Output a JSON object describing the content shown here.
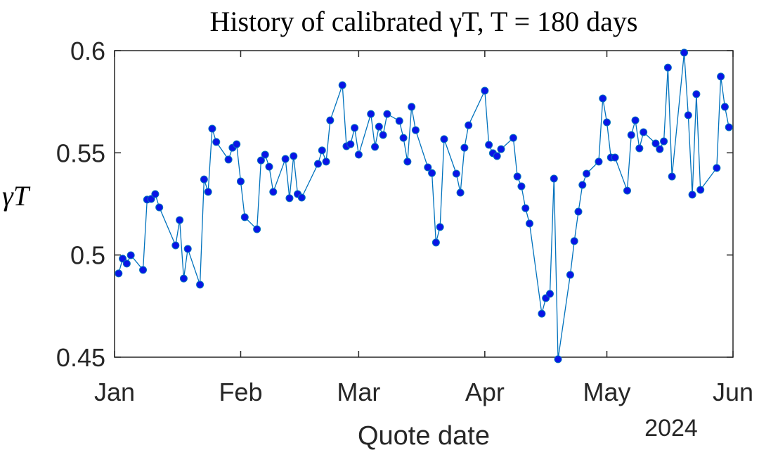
{
  "chart_data": {
    "type": "line",
    "title": "History of calibrated γT, T = 180 days",
    "xlabel": "Quote date",
    "xlabel_secondary": "2024",
    "ylabel": "γT",
    "xlim": [
      0,
      152
    ],
    "xticks": [
      {
        "value": 0,
        "label": "Jan"
      },
      {
        "value": 31,
        "label": "Feb"
      },
      {
        "value": 60,
        "label": "Mar"
      },
      {
        "value": 91,
        "label": "Apr"
      },
      {
        "value": 121,
        "label": "May"
      },
      {
        "value": 152,
        "label": "Jun"
      }
    ],
    "ylim": [
      0.45,
      0.6
    ],
    "yticks": [
      0.45,
      0.5,
      0.55,
      0.6
    ],
    "grid": false,
    "x": [
      1,
      2,
      3,
      4,
      7,
      8,
      9,
      10,
      11,
      15,
      16,
      17,
      18,
      21,
      22,
      23,
      24,
      25,
      28,
      29,
      30,
      31,
      32,
      35,
      36,
      37,
      38,
      39,
      42,
      43,
      44,
      45,
      46,
      50,
      51,
      52,
      53,
      56,
      57,
      58,
      59,
      60,
      63,
      64,
      65,
      66,
      67,
      70,
      71,
      72,
      73,
      74,
      77,
      78,
      79,
      80,
      81,
      84,
      85,
      86,
      87,
      91,
      92,
      93,
      94,
      95,
      98,
      99,
      100,
      101,
      102,
      105,
      106,
      107,
      108,
      109,
      112,
      113,
      114,
      115,
      116,
      119,
      120,
      121,
      122,
      123,
      126,
      127,
      128,
      129,
      130,
      133,
      134,
      135,
      136,
      137,
      140,
      141,
      142,
      143,
      144,
      148,
      149,
      150,
      151
    ],
    "series": [
      {
        "name": "γT",
        "color": "#0072bd",
        "marker_color": "#0a14e6",
        "values": [
          0.491,
          0.4982,
          0.4958,
          0.4999,
          0.4927,
          0.5271,
          0.5274,
          0.5298,
          0.5233,
          0.5047,
          0.5171,
          0.4885,
          0.503,
          0.4855,
          0.537,
          0.5309,
          0.5618,
          0.5553,
          0.5467,
          0.5525,
          0.5542,
          0.536,
          0.5185,
          0.5126,
          0.5463,
          0.5491,
          0.5432,
          0.5309,
          0.547,
          0.5278,
          0.5484,
          0.5298,
          0.5281,
          0.5446,
          0.5512,
          0.5457,
          0.5659,
          0.5831,
          0.5532,
          0.5542,
          0.5622,
          0.5491,
          0.569,
          0.5529,
          0.5628,
          0.5587,
          0.569,
          0.5656,
          0.5573,
          0.5457,
          0.5725,
          0.5611,
          0.5429,
          0.5401,
          0.5061,
          0.5137,
          0.5567,
          0.5398,
          0.5305,
          0.5525,
          0.5635,
          0.5804,
          0.5539,
          0.5498,
          0.5484,
          0.5518,
          0.5573,
          0.5384,
          0.5336,
          0.5229,
          0.5154,
          0.4713,
          0.4789,
          0.481,
          0.5374,
          0.449,
          0.4903,
          0.5068,
          0.5212,
          0.5343,
          0.5398,
          0.5457,
          0.5766,
          0.5649,
          0.5477,
          0.5477,
          0.5315,
          0.5587,
          0.5659,
          0.5522,
          0.5601,
          0.5546,
          0.5518,
          0.5556,
          0.5917,
          0.5384,
          0.599,
          0.5684,
          0.5295,
          0.5787,
          0.5319,
          0.5426,
          0.5873,
          0.5725,
          0.5625
        ]
      }
    ]
  }
}
